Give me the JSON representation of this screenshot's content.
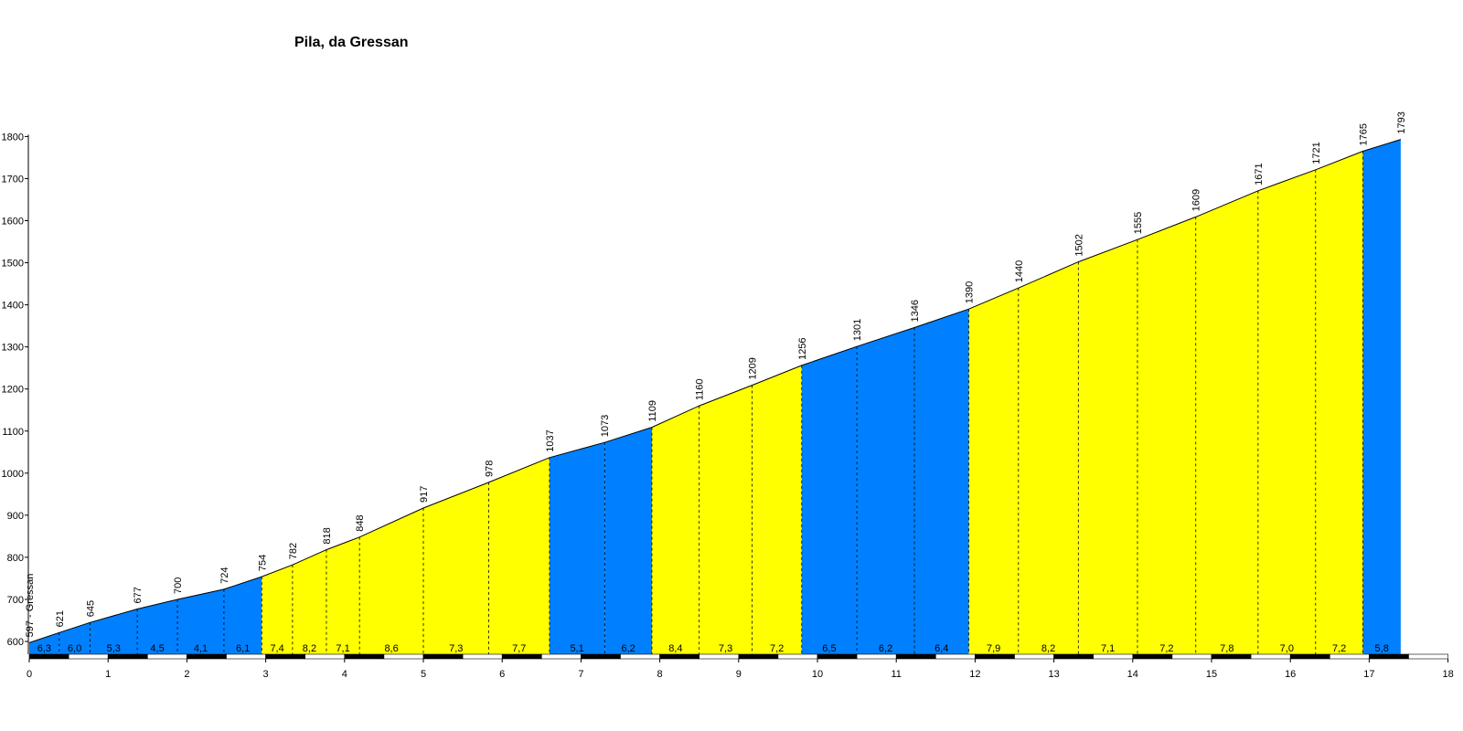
{
  "chart_data": {
    "type": "area",
    "title": "Pila, da Gressan",
    "xlabel": "",
    "ylabel": "",
    "xlim": [
      0,
      18
    ],
    "ylim": [
      550,
      1800
    ],
    "x_ticks": [
      0,
      1,
      2,
      3,
      4,
      5,
      6,
      7,
      8,
      9,
      10,
      11,
      12,
      13,
      14,
      15,
      16,
      17,
      18
    ],
    "y_ticks": [
      600,
      700,
      800,
      900,
      1000,
      1100,
      1200,
      1300,
      1400,
      1500,
      1600,
      1700,
      1800
    ],
    "start_label": "597 - Gressan",
    "points": [
      {
        "x": 0.0,
        "y": 597,
        "label": "597 - Gressan"
      },
      {
        "x": 0.38,
        "y": 621,
        "label": "621"
      },
      {
        "x": 0.77,
        "y": 645,
        "label": "645"
      },
      {
        "x": 1.37,
        "y": 677,
        "label": "677"
      },
      {
        "x": 1.88,
        "y": 700,
        "label": "700"
      },
      {
        "x": 2.47,
        "y": 724,
        "label": "724"
      },
      {
        "x": 2.95,
        "y": 754,
        "label": "754"
      },
      {
        "x": 3.34,
        "y": 782,
        "label": "782"
      },
      {
        "x": 3.77,
        "y": 818,
        "label": "818"
      },
      {
        "x": 4.19,
        "y": 848,
        "label": "848"
      },
      {
        "x": 5.0,
        "y": 917,
        "label": "917"
      },
      {
        "x": 5.83,
        "y": 978,
        "label": "978"
      },
      {
        "x": 6.6,
        "y": 1037,
        "label": "1037"
      },
      {
        "x": 7.3,
        "y": 1073,
        "label": "1073"
      },
      {
        "x": 7.9,
        "y": 1109,
        "label": "1109"
      },
      {
        "x": 8.5,
        "y": 1160,
        "label": "1160"
      },
      {
        "x": 9.17,
        "y": 1209,
        "label": "1209"
      },
      {
        "x": 9.8,
        "y": 1256,
        "label": "1256"
      },
      {
        "x": 10.5,
        "y": 1301,
        "label": "1301"
      },
      {
        "x": 11.23,
        "y": 1346,
        "label": "1346"
      },
      {
        "x": 11.92,
        "y": 1390,
        "label": "1390"
      },
      {
        "x": 12.55,
        "y": 1440,
        "label": "1440"
      },
      {
        "x": 13.31,
        "y": 1502,
        "label": "1502"
      },
      {
        "x": 14.06,
        "y": 1555,
        "label": "1555"
      },
      {
        "x": 14.8,
        "y": 1609,
        "label": "1609"
      },
      {
        "x": 15.59,
        "y": 1671,
        "label": "1671"
      },
      {
        "x": 16.32,
        "y": 1721,
        "label": "1721"
      },
      {
        "x": 16.92,
        "y": 1765,
        "label": "1765"
      },
      {
        "x": 17.4,
        "y": 1793,
        "label": "1793"
      }
    ],
    "segments": [
      {
        "from": 0.0,
        "to": 0.38,
        "gradient": "6,3",
        "color": "#0080ff"
      },
      {
        "from": 0.38,
        "to": 0.77,
        "gradient": "6,0",
        "color": "#0080ff"
      },
      {
        "from": 0.77,
        "to": 1.37,
        "gradient": "5,3",
        "color": "#0080ff"
      },
      {
        "from": 1.37,
        "to": 1.88,
        "gradient": "4,5",
        "color": "#0080ff"
      },
      {
        "from": 1.88,
        "to": 2.47,
        "gradient": "4,1",
        "color": "#0080ff"
      },
      {
        "from": 2.47,
        "to": 2.95,
        "gradient": "6,1",
        "color": "#0080ff"
      },
      {
        "from": 2.95,
        "to": 3.34,
        "gradient": "7,4",
        "color": "#ffff00"
      },
      {
        "from": 3.34,
        "to": 3.77,
        "gradient": "8,2",
        "color": "#ffff00"
      },
      {
        "from": 3.77,
        "to": 4.19,
        "gradient": "7,1",
        "color": "#ffff00"
      },
      {
        "from": 4.19,
        "to": 5.0,
        "gradient": "8,6",
        "color": "#ffff00"
      },
      {
        "from": 5.0,
        "to": 5.83,
        "gradient": "7,3",
        "color": "#ffff00"
      },
      {
        "from": 5.83,
        "to": 6.6,
        "gradient": "7,7",
        "color": "#ffff00"
      },
      {
        "from": 6.6,
        "to": 7.3,
        "gradient": "5,1",
        "color": "#0080ff"
      },
      {
        "from": 7.3,
        "to": 7.9,
        "gradient": "6,2",
        "color": "#0080ff"
      },
      {
        "from": 7.9,
        "to": 8.5,
        "gradient": "8,4",
        "color": "#ffff00"
      },
      {
        "from": 8.5,
        "to": 9.17,
        "gradient": "7,3",
        "color": "#ffff00"
      },
      {
        "from": 9.17,
        "to": 9.8,
        "gradient": "7,2",
        "color": "#ffff00"
      },
      {
        "from": 9.8,
        "to": 10.5,
        "gradient": "6,5",
        "color": "#0080ff"
      },
      {
        "from": 10.5,
        "to": 11.23,
        "gradient": "6,2",
        "color": "#0080ff"
      },
      {
        "from": 11.23,
        "to": 11.92,
        "gradient": "6,4",
        "color": "#0080ff"
      },
      {
        "from": 11.92,
        "to": 12.55,
        "gradient": "7,9",
        "color": "#ffff00"
      },
      {
        "from": 12.55,
        "to": 13.31,
        "gradient": "8,2",
        "color": "#ffff00"
      },
      {
        "from": 13.31,
        "to": 14.06,
        "gradient": "7,1",
        "color": "#ffff00"
      },
      {
        "from": 14.06,
        "to": 14.8,
        "gradient": "7,2",
        "color": "#ffff00"
      },
      {
        "from": 14.8,
        "to": 15.59,
        "gradient": "7,8",
        "color": "#ffff00"
      },
      {
        "from": 15.59,
        "to": 16.32,
        "gradient": "7,0",
        "color": "#ffff00"
      },
      {
        "from": 16.32,
        "to": 16.92,
        "gradient": "7,2",
        "color": "#ffff00"
      },
      {
        "from": 16.92,
        "to": 17.4,
        "gradient": "5,8",
        "color": "#0080ff"
      }
    ],
    "colors": {
      "blue": "#0080ff",
      "yellow": "#ffff00",
      "line": "#000000",
      "km_bar_dark": "#000000",
      "km_bar_light": "#ffffff"
    },
    "grid": false,
    "legend": "none"
  }
}
